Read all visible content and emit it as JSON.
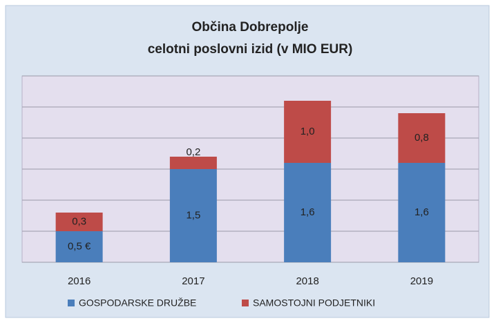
{
  "chart_data": {
    "type": "stacked_bar",
    "title": "Občina Dobrepolje",
    "subtitle": "celotni poslovni izid (v MIO EUR)",
    "categories": [
      "2016",
      "2017",
      "2018",
      "2019"
    ],
    "series": [
      {
        "name": "GOSPODARSKE DRUŽBE",
        "color": "#4a7ebb",
        "values": [
          0.5,
          1.5,
          1.6,
          1.6
        ],
        "value_labels": [
          "0,5 €",
          "1,5",
          "1,6",
          "1,6"
        ]
      },
      {
        "name": "SAMOSTOJNI PODJETNIKI",
        "color": "#be4b48",
        "values": [
          0.3,
          0.2,
          1.0,
          0.8
        ],
        "value_labels": [
          "0,3",
          "0,2",
          "1,0",
          "0,8"
        ]
      }
    ],
    "ylim": [
      0,
      3
    ],
    "yticks": [
      0,
      0.5,
      1,
      1.5,
      2,
      2.5,
      3
    ],
    "grid": true,
    "legend": "bottom"
  }
}
